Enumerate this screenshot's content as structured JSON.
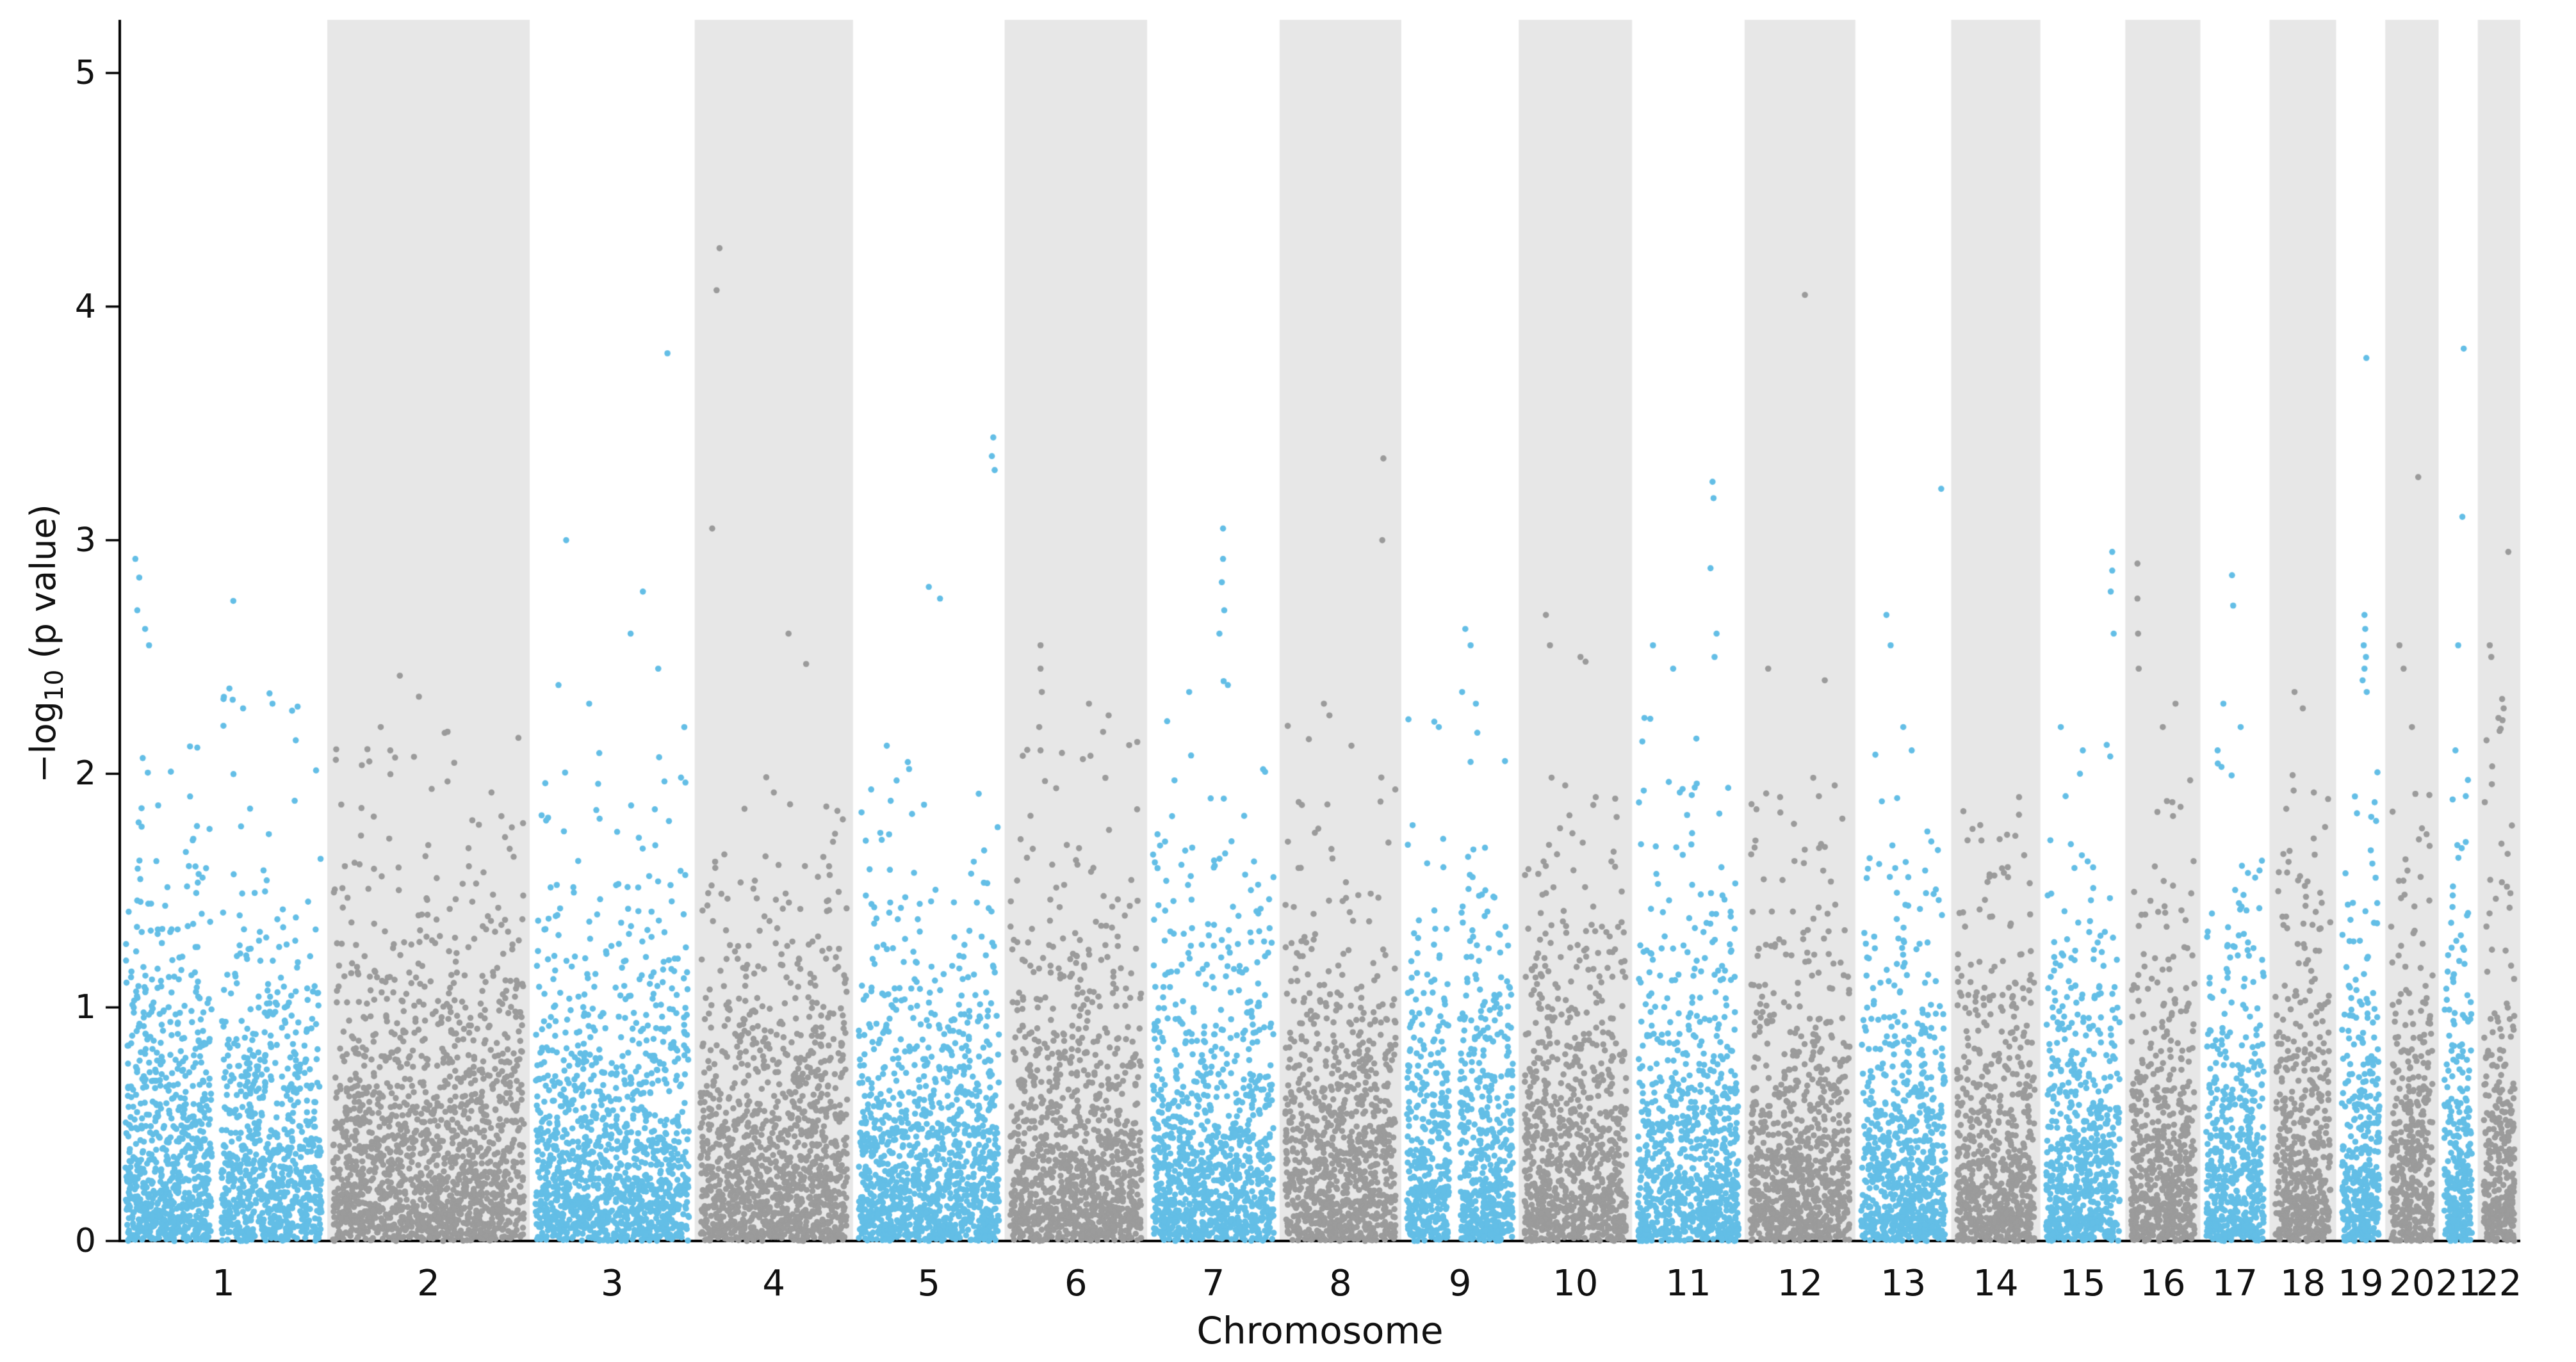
{
  "chart_data": {
    "type": "scatter",
    "variant": "manhattan-plot",
    "title": "",
    "xlabel": "Chromosome",
    "ylabel_prefix": "−log",
    "ylabel_sub": "10",
    "ylabel_suffix": " (p value)",
    "ylim": [
      0,
      5.25
    ],
    "yticks": [
      0,
      1,
      2,
      3,
      4,
      5
    ],
    "grid": false,
    "legend": "none",
    "colors": {
      "odd_points": "#63BEE6",
      "even_points": "#9B9B9B",
      "even_band": "#E7E7E7",
      "background": "#FFFFFF",
      "axis": "#000000",
      "tick_text": "#111111"
    },
    "chromosomes": [
      {
        "label": "1",
        "size": 249,
        "n": 1620,
        "bulk_max": 2.4,
        "gaps": [
          [
            0.44,
            0.49
          ]
        ],
        "peaks": [
          [
            0.05,
            2.92
          ],
          [
            0.07,
            2.84
          ],
          [
            0.06,
            2.7
          ],
          [
            0.1,
            2.62
          ],
          [
            0.12,
            2.55
          ],
          [
            0.55,
            2.74
          ],
          [
            0.5,
            2.32
          ],
          [
            0.75,
            2.3
          ],
          [
            0.85,
            2.27
          ],
          [
            0.6,
            2.28
          ]
        ]
      },
      {
        "label": "2",
        "size": 243,
        "n": 1580,
        "bulk_max": 2.2,
        "gaps": [],
        "peaks": [
          [
            0.35,
            2.42
          ],
          [
            0.45,
            2.33
          ],
          [
            0.25,
            2.2
          ],
          [
            0.6,
            2.18
          ],
          [
            0.3,
            2.1
          ],
          [
            0.83,
            1.92
          ]
        ]
      },
      {
        "label": "3",
        "size": 198,
        "n": 1290,
        "bulk_max": 2.4,
        "gaps": [],
        "peaks": [
          [
            0.86,
            3.8
          ],
          [
            0.2,
            3.0
          ],
          [
            0.7,
            2.78
          ],
          [
            0.62,
            2.6
          ],
          [
            0.15,
            2.38
          ],
          [
            0.35,
            2.3
          ],
          [
            0.8,
            2.45
          ]
        ]
      },
      {
        "label": "4",
        "size": 190,
        "n": 1235,
        "bulk_max": 2.0,
        "gaps": [],
        "peaks": [
          [
            0.13,
            4.25
          ],
          [
            0.11,
            4.07
          ],
          [
            0.08,
            3.05
          ],
          [
            0.6,
            2.6
          ],
          [
            0.72,
            2.47
          ],
          [
            0.5,
            1.92
          ],
          [
            0.3,
            1.85
          ]
        ]
      },
      {
        "label": "5",
        "size": 182,
        "n": 1185,
        "bulk_max": 2.1,
        "gaps": [],
        "peaks": [
          [
            0.96,
            3.44
          ],
          [
            0.95,
            3.36
          ],
          [
            0.97,
            3.3
          ],
          [
            0.5,
            2.8
          ],
          [
            0.58,
            2.75
          ],
          [
            0.2,
            2.12
          ],
          [
            0.35,
            2.05
          ]
        ]
      },
      {
        "label": "6",
        "size": 171,
        "n": 1110,
        "bulk_max": 2.3,
        "gaps": [],
        "peaks": [
          [
            0.23,
            2.55
          ],
          [
            0.23,
            2.45
          ],
          [
            0.24,
            2.35
          ],
          [
            0.22,
            2.2
          ],
          [
            0.6,
            2.3
          ],
          [
            0.75,
            2.25
          ],
          [
            0.23,
            2.1
          ]
        ]
      },
      {
        "label": "7",
        "size": 159,
        "n": 1035,
        "bulk_max": 2.4,
        "gaps": [],
        "peaks": [
          [
            0.58,
            3.05
          ],
          [
            0.58,
            2.92
          ],
          [
            0.57,
            2.82
          ],
          [
            0.59,
            2.7
          ],
          [
            0.55,
            2.6
          ],
          [
            0.3,
            2.35
          ],
          [
            0.62,
            2.38
          ]
        ]
      },
      {
        "label": "8",
        "size": 146,
        "n": 950,
        "bulk_max": 2.3,
        "gaps": [],
        "peaks": [
          [
            0.89,
            3.35
          ],
          [
            0.88,
            3.0
          ],
          [
            0.35,
            2.3
          ],
          [
            0.4,
            2.25
          ],
          [
            0.6,
            2.12
          ]
        ]
      },
      {
        "label": "9",
        "size": 141,
        "n": 915,
        "bulk_max": 2.35,
        "gaps": [
          [
            0.4,
            0.5
          ]
        ],
        "peaks": [
          [
            0.55,
            2.62
          ],
          [
            0.6,
            2.55
          ],
          [
            0.52,
            2.35
          ],
          [
            0.65,
            2.3
          ],
          [
            0.3,
            2.2
          ]
        ]
      },
      {
        "label": "10",
        "size": 136,
        "n": 885,
        "bulk_max": 2.0,
        "gaps": [],
        "peaks": [
          [
            0.21,
            2.68
          ],
          [
            0.25,
            2.55
          ],
          [
            0.55,
            2.5
          ],
          [
            0.6,
            2.48
          ],
          [
            0.4,
            1.95
          ],
          [
            0.7,
            1.9
          ]
        ]
      },
      {
        "label": "11",
        "size": 135,
        "n": 880,
        "bulk_max": 2.3,
        "gaps": [],
        "peaks": [
          [
            0.74,
            3.25
          ],
          [
            0.75,
            3.18
          ],
          [
            0.72,
            2.88
          ],
          [
            0.78,
            2.6
          ],
          [
            0.15,
            2.55
          ],
          [
            0.35,
            2.45
          ],
          [
            0.76,
            2.5
          ]
        ]
      },
      {
        "label": "12",
        "size": 133,
        "n": 865,
        "bulk_max": 2.0,
        "gaps": [],
        "peaks": [
          [
            0.55,
            4.05
          ],
          [
            0.18,
            2.45
          ],
          [
            0.75,
            2.4
          ],
          [
            0.85,
            1.95
          ],
          [
            0.3,
            1.9
          ]
        ]
      },
      {
        "label": "13",
        "size": 115,
        "n": 750,
        "bulk_max": 2.1,
        "gaps": [],
        "peaks": [
          [
            0.95,
            3.22
          ],
          [
            0.3,
            2.68
          ],
          [
            0.35,
            2.55
          ],
          [
            0.5,
            2.2
          ],
          [
            0.6,
            2.1
          ]
        ]
      },
      {
        "label": "14",
        "size": 107,
        "n": 695,
        "bulk_max": 1.85,
        "gaps": [],
        "peaks": [
          [
            0.8,
            1.9
          ],
          [
            0.3,
            1.78
          ],
          [
            0.55,
            1.72
          ]
        ]
      },
      {
        "label": "15",
        "size": 102,
        "n": 665,
        "bulk_max": 2.2,
        "gaps": [],
        "peaks": [
          [
            0.9,
            2.95
          ],
          [
            0.9,
            2.87
          ],
          [
            0.88,
            2.78
          ],
          [
            0.92,
            2.6
          ],
          [
            0.2,
            2.2
          ],
          [
            0.5,
            2.1
          ]
        ]
      },
      {
        "label": "16",
        "size": 90,
        "n": 585,
        "bulk_max": 2.2,
        "gaps": [],
        "peaks": [
          [
            0.1,
            2.9
          ],
          [
            0.1,
            2.75
          ],
          [
            0.11,
            2.6
          ],
          [
            0.12,
            2.45
          ],
          [
            0.7,
            2.3
          ],
          [
            0.5,
            2.2
          ]
        ]
      },
      {
        "label": "17",
        "size": 83,
        "n": 540,
        "bulk_max": 2.2,
        "gaps": [],
        "peaks": [
          [
            0.45,
            2.85
          ],
          [
            0.47,
            2.72
          ],
          [
            0.3,
            2.3
          ],
          [
            0.6,
            2.2
          ],
          [
            0.2,
            2.1
          ]
        ]
      },
      {
        "label": "18",
        "size": 80,
        "n": 520,
        "bulk_max": 2.0,
        "gaps": [],
        "peaks": [
          [
            0.35,
            2.35
          ],
          [
            0.5,
            2.28
          ],
          [
            0.7,
            1.92
          ],
          [
            0.2,
            1.85
          ]
        ]
      },
      {
        "label": "19",
        "size": 59,
        "n": 385,
        "bulk_max": 2.4,
        "gaps": [],
        "peaks": [
          [
            0.65,
            3.78
          ],
          [
            0.6,
            2.68
          ],
          [
            0.62,
            2.62
          ],
          [
            0.58,
            2.55
          ],
          [
            0.64,
            2.5
          ],
          [
            0.6,
            2.45
          ],
          [
            0.55,
            2.4
          ],
          [
            0.66,
            2.35
          ]
        ]
      },
      {
        "label": "20",
        "size": 64,
        "n": 415,
        "bulk_max": 2.1,
        "gaps": [],
        "peaks": [
          [
            0.65,
            3.27
          ],
          [
            0.2,
            2.55
          ],
          [
            0.3,
            2.45
          ],
          [
            0.5,
            2.2
          ]
        ]
      },
      {
        "label": "21",
        "size": 47,
        "n": 305,
        "bulk_max": 2.0,
        "gaps": [],
        "peaks": [
          [
            0.7,
            3.82
          ],
          [
            0.65,
            3.1
          ],
          [
            0.5,
            2.55
          ],
          [
            0.4,
            2.1
          ]
        ]
      },
      {
        "label": "22",
        "size": 51,
        "n": 330,
        "bulk_max": 2.3,
        "gaps": [],
        "peaks": [
          [
            0.8,
            2.95
          ],
          [
            0.2,
            2.55
          ],
          [
            0.25,
            2.5
          ],
          [
            0.6,
            2.32
          ],
          [
            0.65,
            2.28
          ]
        ]
      }
    ]
  }
}
